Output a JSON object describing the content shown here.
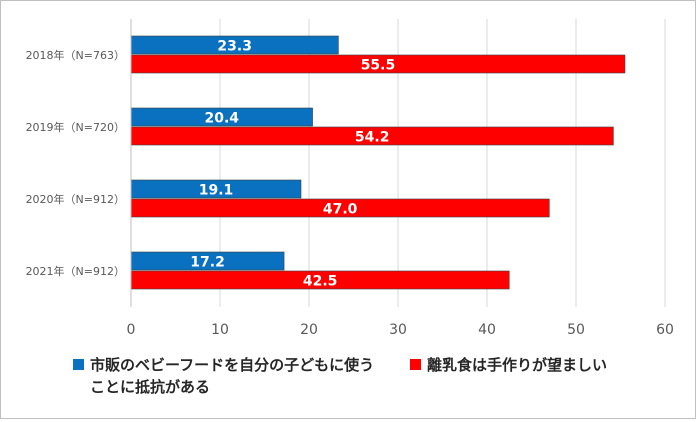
{
  "colors": {
    "series1": "#0a70c0",
    "series2": "#ff0000",
    "grid": "#d9d9d9",
    "text": "#595959",
    "label": "#ffffff"
  },
  "legend": {
    "series1_label": "市販のベビーフードを自分の子どもに使うことに抵抗がある",
    "series2_label": "離乳食は手作りが望ましい"
  },
  "chart_data": {
    "type": "bar",
    "orientation": "horizontal",
    "categories": [
      "2018年（N=763）",
      "2019年（N=720）",
      "2020年（N=912）",
      "2021年（N=912）"
    ],
    "series": [
      {
        "name": "市販のベビーフードを自分の子どもに使うことに抵抗がある",
        "values": [
          23.3,
          20.4,
          19.1,
          17.2
        ],
        "value_labels": [
          "23.3",
          "20.4",
          "19.1",
          "17.2"
        ]
      },
      {
        "name": "離乳食は手作りが望ましい",
        "values": [
          55.5,
          54.2,
          47.0,
          42.5
        ],
        "value_labels": [
          "55.5",
          "54.2",
          "47.0",
          "42.5"
        ]
      }
    ],
    "xlim": [
      0,
      60
    ],
    "xticks": [
      0,
      10,
      20,
      30,
      40,
      50,
      60
    ],
    "grid": "vertical",
    "legend_position": "bottom",
    "title": "",
    "xlabel": "",
    "ylabel": ""
  }
}
